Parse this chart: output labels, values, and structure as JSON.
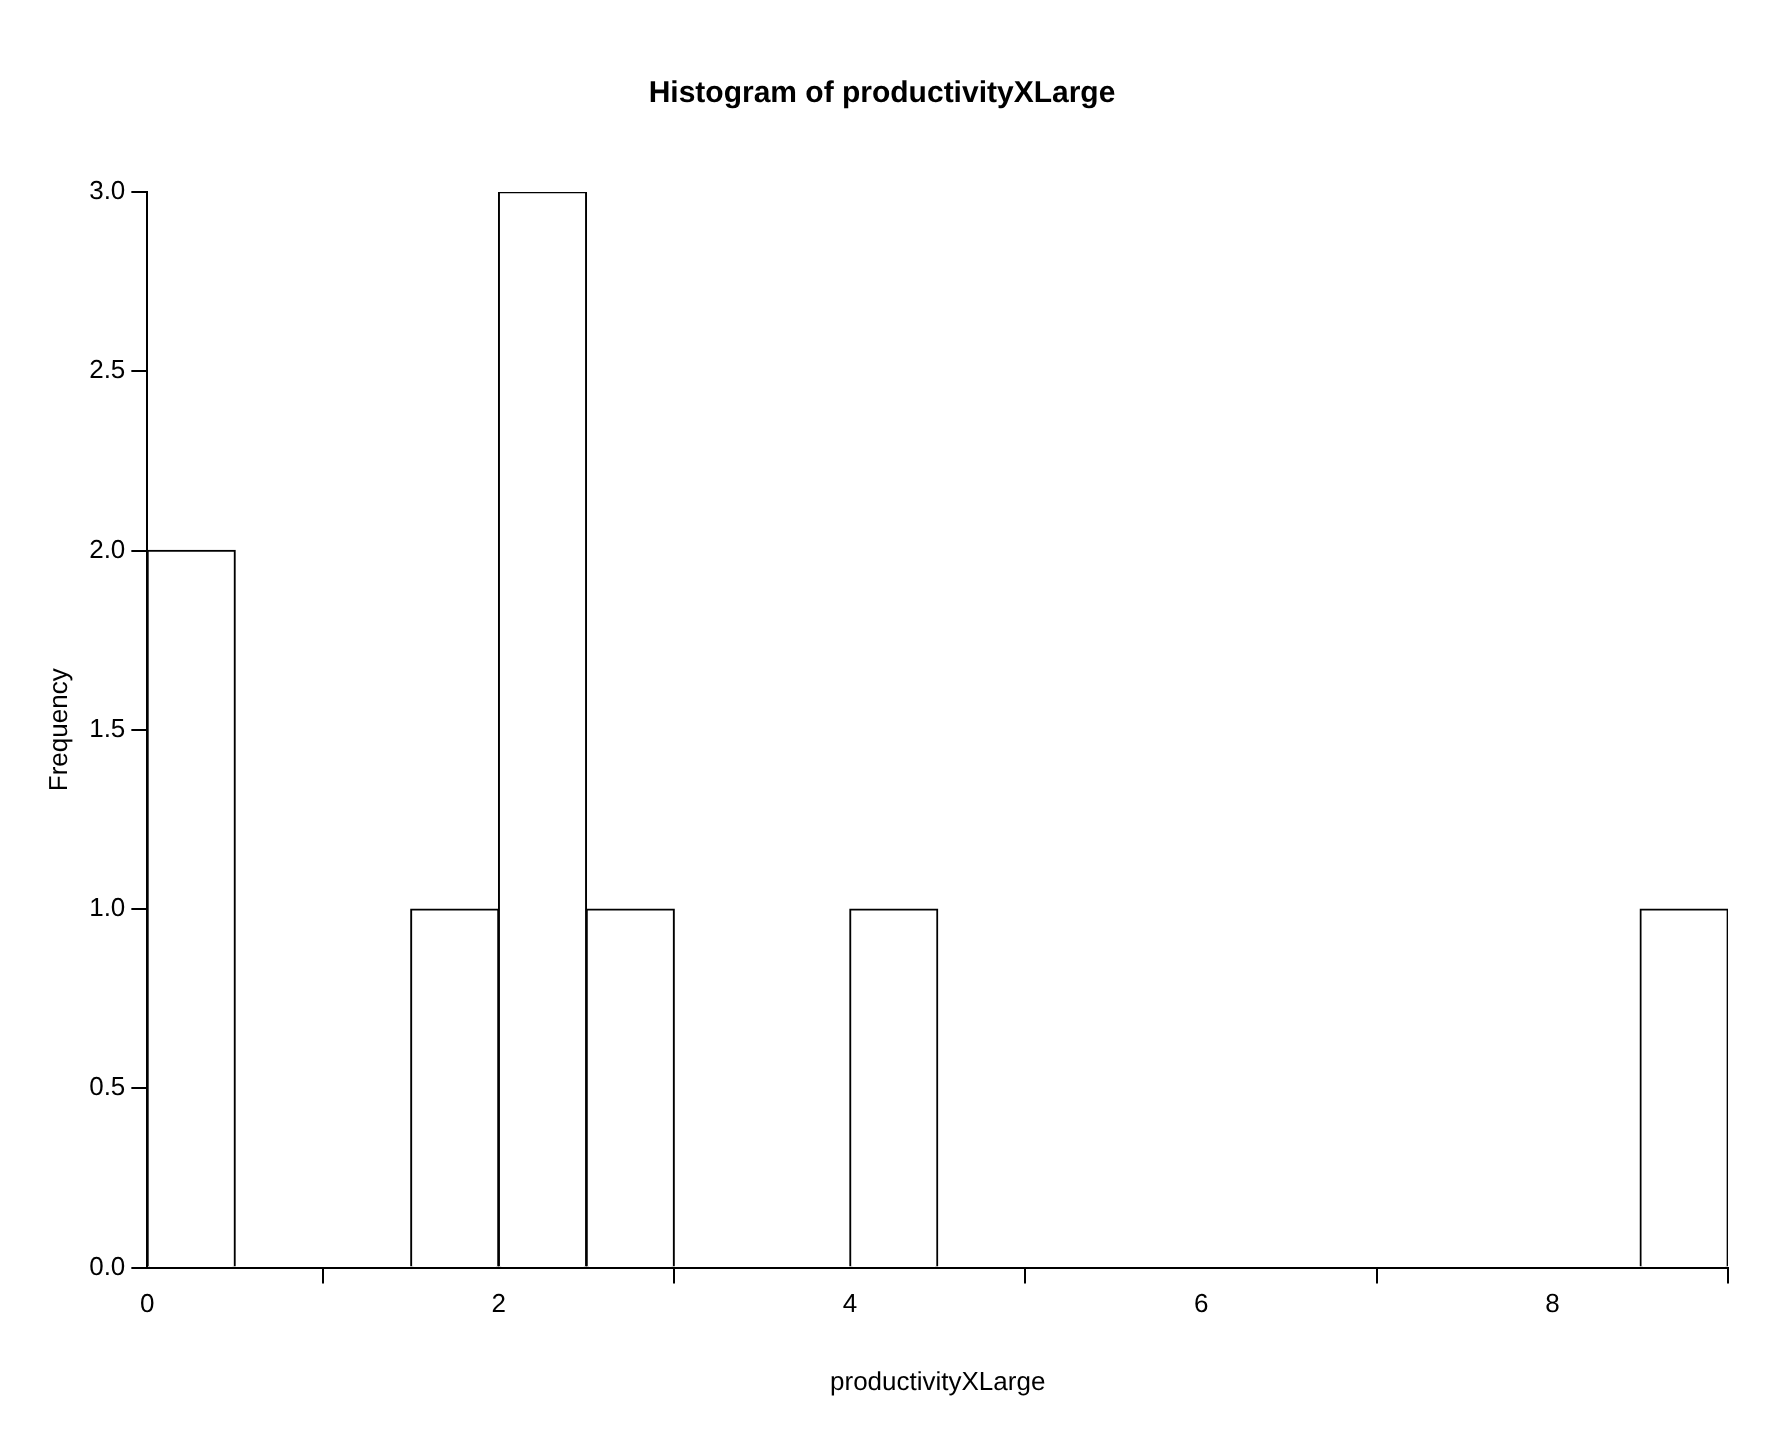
{
  "chart_data": {
    "type": "histogram",
    "title": "Histogram of productivityXLarge",
    "xlabel": "productivityXLarge",
    "ylabel": "Frequency",
    "bins": [
      0,
      0.5,
      1,
      1.5,
      2,
      2.5,
      3,
      3.5,
      4,
      4.5,
      5,
      5.5,
      6,
      6.5,
      7,
      7.5,
      8,
      8.5,
      9
    ],
    "values": [
      2,
      0,
      0,
      1,
      3,
      1,
      0,
      0,
      1,
      0,
      0,
      0,
      0,
      0,
      0,
      0,
      0,
      1
    ],
    "color": "#ffffff",
    "xlim": [
      0,
      9
    ],
    "xticks": [
      0,
      2,
      4,
      6,
      8
    ],
    "ylim": [
      0,
      3
    ],
    "yticks": [
      {
        "value": 0,
        "label": "0.0"
      },
      {
        "value": 0.5,
        "label": "0.5"
      },
      {
        "value": 1,
        "label": "1.0"
      },
      {
        "value": 1.5,
        "label": "1.5"
      },
      {
        "value": 2,
        "label": "2.0"
      },
      {
        "value": 2.5,
        "label": "2.5"
      },
      {
        "value": 3,
        "label": "3.0"
      }
    ]
  }
}
